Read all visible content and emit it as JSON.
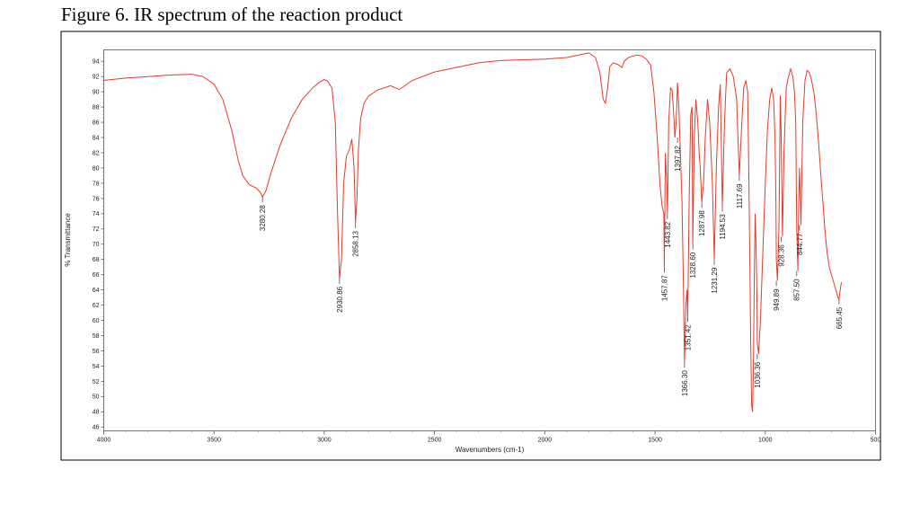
{
  "figure": {
    "title": "Figure 6. IR spectrum of the reaction product"
  },
  "chart_data": {
    "type": "line",
    "title": "Figure 6. IR spectrum of the reaction product",
    "xlabel": "Wavenumbers (cm-1)",
    "ylabel": "% Transmittance",
    "xlim": [
      4000,
      500
    ],
    "ylim": [
      45.5,
      95.5
    ],
    "x_reversed": true,
    "x_ticks": [
      4000,
      3500,
      3000,
      2500,
      2000,
      1500,
      1000,
      500
    ],
    "y_ticks": [
      46,
      48,
      50,
      52,
      54,
      56,
      58,
      60,
      62,
      64,
      66,
      68,
      70,
      72,
      74,
      76,
      78,
      80,
      82,
      84,
      86,
      88,
      90,
      92,
      94
    ],
    "grid": false,
    "line_color": "#e8392c",
    "series": [
      {
        "x": [
          4000,
          3900,
          3800,
          3700,
          3600,
          3550,
          3500,
          3460,
          3420,
          3390,
          3370,
          3340,
          3310,
          3290,
          3280,
          3265,
          3240,
          3200,
          3150,
          3100,
          3050,
          3020,
          3000,
          2985,
          2965,
          2950,
          2940,
          2930.86,
          2922,
          2912,
          2900,
          2885,
          2875,
          2865,
          2858.13,
          2852,
          2845,
          2835,
          2820,
          2800,
          2760,
          2700,
          2660,
          2600,
          2500,
          2400,
          2300,
          2200,
          2100,
          2000,
          1900,
          1800,
          1770,
          1750,
          1735,
          1725,
          1715,
          1705,
          1690,
          1670,
          1650,
          1640,
          1620,
          1600,
          1580,
          1560,
          1540,
          1520,
          1505,
          1490,
          1478,
          1468,
          1460,
          1457.87,
          1453,
          1447,
          1443.82,
          1438,
          1430,
          1422,
          1415,
          1410,
          1404,
          1397.82,
          1392,
          1385,
          1378,
          1372,
          1366.3,
          1360,
          1355,
          1351.42,
          1345,
          1338,
          1332,
          1328.6,
          1322,
          1315,
          1306,
          1300,
          1295,
          1287.98,
          1280,
          1272,
          1262,
          1252,
          1240,
          1231.29,
          1222,
          1212,
          1204,
          1194.53,
          1185,
          1175,
          1160,
          1145,
          1130,
          1117.69,
          1108,
          1098,
          1088,
          1080,
          1075,
          1070,
          1066,
          1062,
          1058,
          1054,
          1050,
          1046,
          1042,
          1038,
          1036.36,
          1030,
          1022,
          1012,
          1000,
          990,
          980,
          970,
          962,
          956,
          952,
          949.89,
          945,
          938,
          932,
          928.36,
          922,
          915,
          905,
          895,
          885,
          875,
          868,
          862,
          857.5,
          852,
          848,
          844.77,
          838,
          830,
          820,
          810,
          800,
          790,
          780,
          770,
          760,
          750,
          740,
          730,
          720,
          710,
          700,
          690,
          680,
          670,
          665.45,
          660,
          655
        ],
        "y": [
          91.5,
          91.8,
          92.0,
          92.2,
          92.3,
          92.0,
          91.0,
          89.0,
          85.0,
          81.0,
          79.0,
          77.8,
          77.4,
          76.8,
          76.2,
          77.0,
          79.5,
          83.0,
          86.5,
          89.0,
          90.6,
          91.3,
          91.6,
          91.4,
          90.5,
          86.0,
          74.0,
          65.5,
          68.0,
          78.0,
          81.5,
          82.5,
          83.8,
          80.0,
          72.8,
          76.0,
          82.5,
          86.5,
          88.5,
          89.4,
          90.2,
          90.8,
          90.3,
          91.5,
          92.6,
          93.2,
          93.8,
          94.1,
          94.2,
          94.3,
          94.5,
          95.1,
          94.5,
          92.5,
          89.0,
          88.5,
          90.5,
          93.3,
          93.8,
          93.6,
          93.2,
          94.0,
          94.5,
          94.7,
          94.8,
          94.7,
          94.3,
          93.5,
          90.0,
          84.0,
          78.0,
          75.0,
          74.0,
          67.0,
          82.0,
          78.0,
          74.0,
          86.0,
          90.5,
          90.2,
          87.0,
          84.0,
          86.0,
          91.2,
          88.0,
          82.0,
          76.0,
          66.0,
          54.5,
          62.0,
          64.0,
          60.5,
          76.0,
          87.0,
          88.0,
          70.0,
          84.0,
          89.0,
          86.0,
          82.0,
          80.0,
          75.5,
          78.0,
          84.0,
          89.0,
          86.0,
          78.0,
          68.0,
          80.0,
          88.0,
          91.0,
          75.0,
          86.0,
          92.5,
          93.0,
          92.0,
          89.0,
          79.0,
          85.0,
          90.5,
          91.5,
          90.0,
          80.0,
          68.0,
          57.0,
          49.0,
          48.0,
          53.0,
          65.0,
          74.0,
          70.0,
          63.0,
          57.0,
          55.6,
          60.0,
          68.0,
          78.0,
          85.0,
          89.0,
          90.5,
          89.0,
          84.0,
          76.0,
          68.0,
          65.2,
          72.0,
          89.5,
          85.0,
          71.0,
          82.0,
          90.5,
          92.0,
          93.0,
          92.0,
          90.0,
          86.0,
          72.0,
          66.5,
          76.0,
          80.0,
          72.5,
          86.0,
          91.5,
          92.8,
          92.5,
          91.5,
          90.0,
          87.5,
          84.0,
          80.0,
          76.0,
          72.0,
          69.0,
          67.0,
          66.0,
          65.0,
          64.0,
          63.0,
          62.8,
          64.0,
          65.0
        ]
      }
    ],
    "annotations": [
      {
        "x": 3280.28,
        "y": 76.2,
        "label": "3280.28"
      },
      {
        "x": 2930.86,
        "y": 65.5,
        "label": "2930.86"
      },
      {
        "x": 2858.13,
        "y": 72.8,
        "label": "2858.13"
      },
      {
        "x": 1457.87,
        "y": 67.0,
        "label": "1457.87"
      },
      {
        "x": 1443.82,
        "y": 74.0,
        "label": "1443.82"
      },
      {
        "x": 1397.82,
        "y": 84.0,
        "label": "1397.82"
      },
      {
        "x": 1366.3,
        "y": 54.5,
        "label": "1366.30"
      },
      {
        "x": 1351.42,
        "y": 60.5,
        "label": "1351.42"
      },
      {
        "x": 1328.6,
        "y": 70.0,
        "label": "1328.60"
      },
      {
        "x": 1287.98,
        "y": 75.5,
        "label": "1287.98"
      },
      {
        "x": 1231.29,
        "y": 68.0,
        "label": "1231.29"
      },
      {
        "x": 1194.53,
        "y": 75.0,
        "label": "1194.53"
      },
      {
        "x": 1117.69,
        "y": 79.0,
        "label": "1117.69"
      },
      {
        "x": 1036.36,
        "y": 55.6,
        "label": "1036.36"
      },
      {
        "x": 949.89,
        "y": 65.2,
        "label": "949.89"
      },
      {
        "x": 928.36,
        "y": 71.0,
        "label": "928.36"
      },
      {
        "x": 857.5,
        "y": 66.5,
        "label": "857.50"
      },
      {
        "x": 844.77,
        "y": 72.5,
        "label": "844.77"
      },
      {
        "x": 665.45,
        "y": 62.8,
        "label": "665.45"
      }
    ]
  }
}
